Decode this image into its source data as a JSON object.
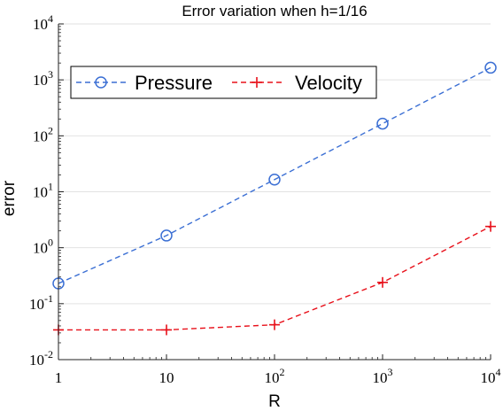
{
  "chart_data": {
    "type": "line",
    "title": "Error variation when h=1/16",
    "xlabel": "R",
    "ylabel": "error",
    "xscale": "log",
    "yscale": "log",
    "xlim": [
      1,
      10000
    ],
    "ylim": [
      0.01,
      10000
    ],
    "x_ticks": [
      {
        "value": 1,
        "base": "1",
        "exp": ""
      },
      {
        "value": 10,
        "base": "10",
        "exp": ""
      },
      {
        "value": 100,
        "base": "10",
        "exp": "2"
      },
      {
        "value": 1000,
        "base": "10",
        "exp": "3"
      },
      {
        "value": 10000,
        "base": "10",
        "exp": "4"
      }
    ],
    "y_ticks": [
      {
        "value": 0.01,
        "base": "10",
        "exp": "-2"
      },
      {
        "value": 0.1,
        "base": "10",
        "exp": "-1"
      },
      {
        "value": 1,
        "base": "10",
        "exp": "0"
      },
      {
        "value": 10,
        "base": "10",
        "exp": "1"
      },
      {
        "value": 100,
        "base": "10",
        "exp": "2"
      },
      {
        "value": 1000,
        "base": "10",
        "exp": "3"
      },
      {
        "value": 10000,
        "base": "10",
        "exp": "4"
      }
    ],
    "grid": "horizontal",
    "legend_position": "top-left",
    "x": [
      1,
      10,
      100,
      1000,
      10000
    ],
    "series": [
      {
        "name": "Pressure",
        "values": [
          0.23,
          1.65,
          16.5,
          165,
          1650
        ],
        "color": "#3b6fd4",
        "marker": "circle",
        "line": "dashed"
      },
      {
        "name": "Velocity",
        "values": [
          0.034,
          0.034,
          0.042,
          0.24,
          2.4
        ],
        "color": "#e8101a",
        "marker": "plus",
        "line": "dashed"
      }
    ]
  }
}
